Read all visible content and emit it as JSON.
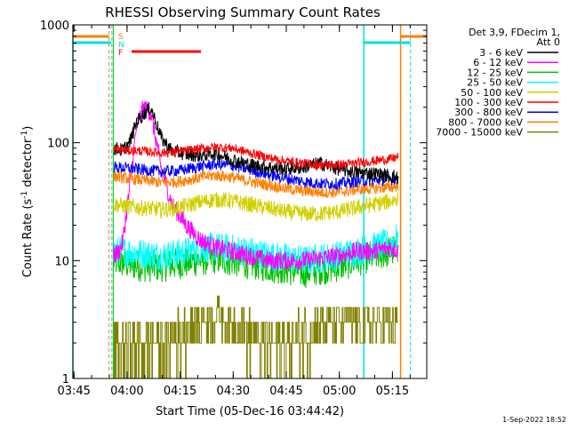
{
  "chart_data": {
    "type": "line",
    "title": "RHESSI Observing Summary Count Rates",
    "xlabel": "Start Time (05-Dec-16 03:44:42)",
    "ylabel_main": "Count Rate (s",
    "ylabel_sup1": "-1",
    "ylabel_mid": " detector",
    "ylabel_sup2": "-1",
    "ylabel_end": ")",
    "y_scale": "log",
    "ylim": [
      1,
      1000
    ],
    "xlim_minutes": [
      0,
      100
    ],
    "x_tick_labels": [
      "03:45",
      "04:00",
      "04:15",
      "04:30",
      "04:45",
      "05:00",
      "05:15"
    ],
    "x_tick_minutes": [
      0.3,
      15.3,
      30.3,
      45.3,
      60.3,
      75.3,
      90.3
    ],
    "y_tick_labels": [
      "1",
      "10",
      "100",
      "1000"
    ],
    "y_tick_values": [
      1,
      10,
      100,
      1000
    ],
    "legend_header": [
      "Det 3,9, FDecim 1,",
      "Att 0"
    ],
    "legend_placement": "right",
    "flag_labels": [
      {
        "text": "S",
        "color": "#ff8000"
      },
      {
        "text": "N",
        "color": "#00e0e0"
      },
      {
        "text": "F",
        "color": "#ff0000"
      }
    ],
    "timestamp": "1-Sep-2022 18:52",
    "series": [
      {
        "name": "3 - 6 keV",
        "color": "#000000",
        "x": [
          11.5,
          13,
          14,
          16,
          18,
          20,
          22,
          25,
          28,
          32,
          36,
          40,
          45,
          50,
          55,
          60,
          65,
          70,
          75,
          80,
          85,
          90,
          92
        ],
        "y": [
          90,
          88,
          86,
          100,
          150,
          175,
          200,
          110,
          85,
          80,
          78,
          82,
          72,
          65,
          62,
          60,
          62,
          67,
          60,
          56,
          55,
          52,
          50
        ]
      },
      {
        "name": "6 - 12 keV",
        "color": "#ff00ff",
        "x": [
          11.5,
          13,
          14,
          16,
          18,
          20,
          22,
          25,
          28,
          32,
          36,
          40,
          45,
          50,
          55,
          60,
          65,
          70,
          75,
          80,
          85,
          90,
          92
        ],
        "y": [
          11,
          12,
          14,
          40,
          140,
          200,
          180,
          60,
          30,
          20,
          15,
          13,
          12,
          11,
          10,
          10,
          10,
          10.5,
          11,
          12,
          12,
          13,
          12
        ]
      },
      {
        "name": "12 - 25 keV",
        "color": "#00c000",
        "x": [
          11.5,
          15,
          20,
          25,
          30,
          35,
          40,
          45,
          50,
          55,
          60,
          65,
          70,
          75,
          80,
          85,
          90,
          92
        ],
        "y": [
          10,
          9.5,
          9,
          9,
          9.5,
          10,
          10.5,
          10,
          9.5,
          9,
          8.5,
          8,
          8.5,
          9,
          10,
          11,
          12,
          13
        ]
      },
      {
        "name": "25 - 50 keV",
        "color": "#00ffff",
        "x": [
          11.5,
          15,
          20,
          25,
          30,
          35,
          40,
          45,
          50,
          55,
          60,
          65,
          70,
          75,
          80,
          85,
          90,
          92
        ],
        "y": [
          12,
          12,
          11.5,
          11,
          11.5,
          12.5,
          13,
          12.5,
          12,
          11,
          10.5,
          10,
          10.5,
          11,
          12,
          13,
          14,
          16
        ]
      },
      {
        "name": "50 - 100 keV",
        "color": "#d0d000",
        "x": [
          11.5,
          15,
          20,
          25,
          30,
          35,
          40,
          45,
          50,
          55,
          60,
          65,
          70,
          75,
          80,
          85,
          90,
          92
        ],
        "y": [
          30,
          29,
          28,
          27,
          28,
          31,
          33,
          32,
          30,
          28,
          26,
          25,
          25,
          26,
          28,
          30,
          32,
          34
        ]
      },
      {
        "name": "100 - 300 keV",
        "color": "#ff0000",
        "x": [
          11.5,
          15,
          20,
          25,
          30,
          35,
          40,
          45,
          50,
          55,
          60,
          65,
          70,
          75,
          80,
          85,
          90,
          92
        ],
        "y": [
          88,
          86,
          85,
          82,
          84,
          88,
          92,
          90,
          82,
          75,
          70,
          67,
          65,
          65,
          67,
          70,
          73,
          76
        ]
      },
      {
        "name": "300 - 800 keV",
        "color": "#0000ff",
        "x": [
          11.5,
          15,
          20,
          25,
          30,
          35,
          40,
          45,
          50,
          55,
          60,
          65,
          70,
          75,
          80,
          85,
          90,
          92
        ],
        "y": [
          62,
          61,
          59,
          57,
          58,
          62,
          66,
          64,
          59,
          54,
          50,
          47,
          45,
          45,
          47,
          48,
          49,
          50
        ]
      },
      {
        "name": "800 - 7000 keV",
        "color": "#ff8000",
        "x": [
          11.5,
          15,
          20,
          25,
          30,
          35,
          40,
          45,
          50,
          55,
          60,
          65,
          70,
          75,
          80,
          85,
          90,
          92
        ],
        "y": [
          52,
          50,
          48,
          46,
          47,
          50,
          53,
          51,
          47,
          44,
          41,
          39,
          38,
          38,
          40,
          41,
          42,
          43
        ]
      },
      {
        "name": "7000 - 15000 keV",
        "color": "#808000",
        "x": [
          11.5,
          15,
          20,
          25,
          30,
          35,
          40,
          45,
          50,
          55,
          60,
          65,
          70,
          75,
          80,
          85,
          90,
          92
        ],
        "y": [
          2,
          2,
          2,
          2,
          2.5,
          3,
          3.5,
          3,
          2.5,
          2,
          2,
          2.5,
          3,
          3,
          3,
          3,
          3,
          3
        ]
      }
    ]
  }
}
